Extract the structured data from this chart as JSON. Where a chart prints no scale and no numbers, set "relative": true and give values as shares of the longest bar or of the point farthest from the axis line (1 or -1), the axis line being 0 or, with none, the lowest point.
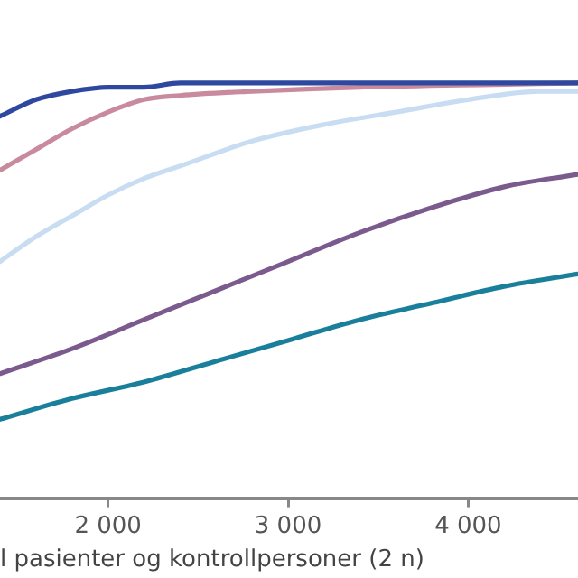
{
  "chart_data": {
    "type": "line",
    "relative": true,
    "xlabel": "l pasienter og kontrollpersoner (2 n)",
    "xlim": [
      1400,
      4610
    ],
    "xticks": [
      {
        "value": 2000,
        "label": "2 000"
      },
      {
        "value": 3000,
        "label": "3 000"
      },
      {
        "value": 4000,
        "label": "4 000"
      }
    ],
    "grid": false,
    "legend": false,
    "marker": "none",
    "tick_labels": "x",
    "series": [
      {
        "color": "#2e48a0",
        "x": [
          1400,
          1600,
          1800,
          2000,
          2200,
          2400,
          4610
        ],
        "values": [
          0.92,
          0.96,
          0.98,
          0.99,
          0.99,
          1.0,
          1.0
        ]
      },
      {
        "color": "#c98a9e",
        "x": [
          1400,
          1600,
          1800,
          2000,
          2200,
          2400,
          2800,
          3400,
          4610
        ],
        "values": [
          0.79,
          0.84,
          0.89,
          0.93,
          0.96,
          0.97,
          0.98,
          0.99,
          1.0
        ]
      },
      {
        "color": "#c8dcf2",
        "x": [
          1400,
          1600,
          1800,
          2000,
          2200,
          2400,
          2800,
          3200,
          3600,
          4000,
          4400,
          4610
        ],
        "values": [
          0.57,
          0.63,
          0.68,
          0.73,
          0.77,
          0.8,
          0.86,
          0.9,
          0.93,
          0.96,
          0.98,
          0.98
        ]
      },
      {
        "color": "#7b5a8e",
        "x": [
          1400,
          1800,
          2200,
          2600,
          3000,
          3400,
          3800,
          4200,
          4610
        ],
        "values": [
          0.3,
          0.36,
          0.43,
          0.5,
          0.57,
          0.64,
          0.7,
          0.75,
          0.78
        ]
      },
      {
        "color": "#1a7f9a",
        "x": [
          1400,
          1800,
          2200,
          2600,
          3000,
          3400,
          3800,
          4200,
          4610
        ],
        "values": [
          0.19,
          0.24,
          0.28,
          0.33,
          0.38,
          0.43,
          0.47,
          0.51,
          0.54
        ]
      }
    ]
  }
}
